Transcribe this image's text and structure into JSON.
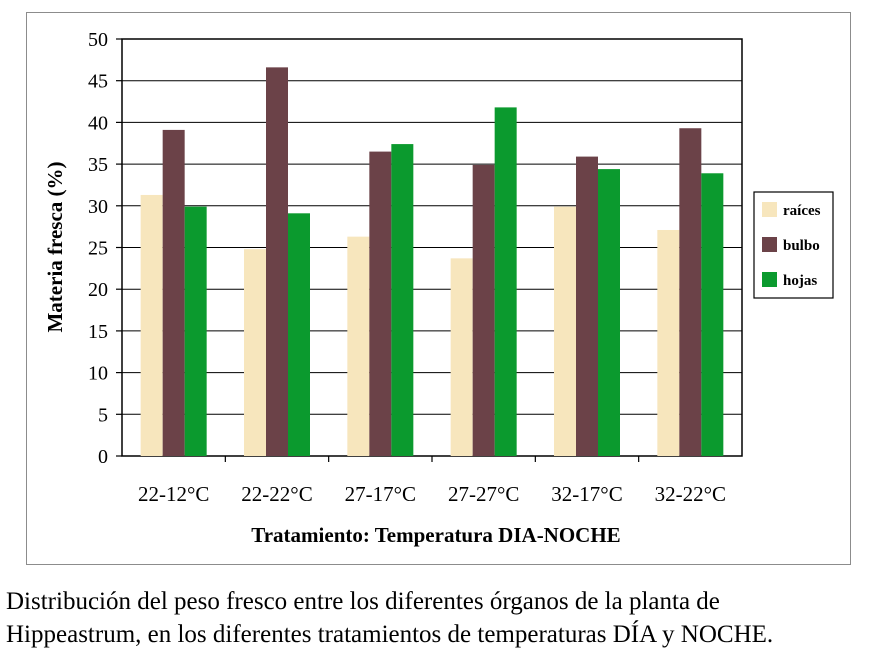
{
  "chart_data": {
    "type": "bar",
    "title": "",
    "xlabel": "Tratamiento: Temperatura DIA-NOCHE",
    "ylabel": "Materia fresca (%)",
    "ylim": [
      0,
      50
    ],
    "yticks": [
      0,
      5,
      10,
      15,
      20,
      25,
      30,
      35,
      40,
      45,
      50
    ],
    "grid": true,
    "legend_position": "right",
    "categories": [
      "22-12°C",
      "22-22°C",
      "27-17°C",
      "27-27°C",
      "32-17°C",
      "32-22°C"
    ],
    "series": [
      {
        "name": "raíces",
        "color": "#f7e6bd",
        "values": [
          31.3,
          24.8,
          26.3,
          23.7,
          29.9,
          27.1
        ]
      },
      {
        "name": "bulbo",
        "color": "#6b4248",
        "values": [
          39.1,
          46.6,
          36.5,
          34.9,
          35.9,
          39.3
        ]
      },
      {
        "name": "hojas",
        "color": "#0b9a2e",
        "values": [
          29.9,
          29.1,
          37.4,
          41.8,
          34.4,
          33.9
        ]
      }
    ]
  },
  "caption": {
    "line1": "Distribución del peso fresco entre los diferentes órganos de la planta de",
    "line2": "Hippeastrum, en los diferentes tratamientos de temperaturas DÍA y NOCHE."
  }
}
